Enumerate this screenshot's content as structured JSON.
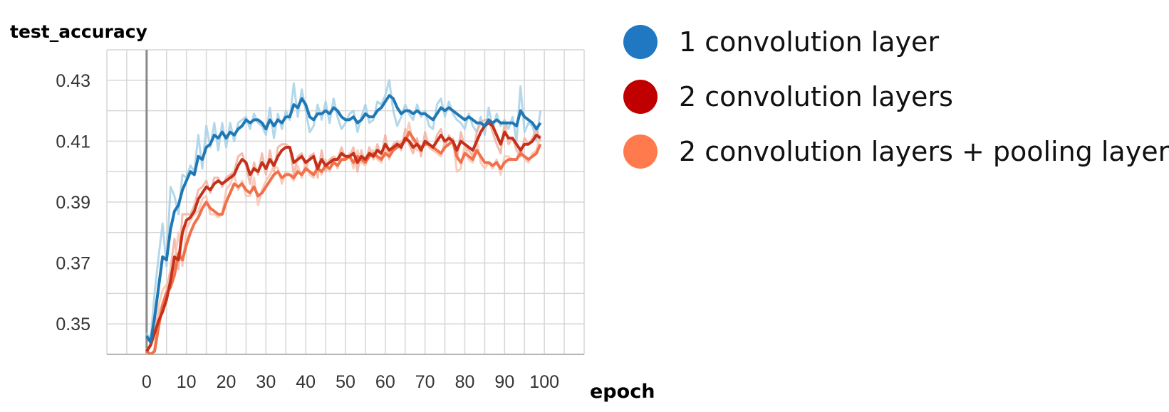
{
  "chart_data": {
    "type": "line",
    "ylabel": "test_accuracy",
    "xlabel": "epoch",
    "xlim": [
      -10,
      110
    ],
    "ylim": [
      0.34,
      0.44
    ],
    "xticks": [
      0,
      10,
      20,
      30,
      40,
      50,
      60,
      70,
      80,
      90,
      100
    ],
    "yticks": [
      0.35,
      0.37,
      0.39,
      0.41,
      0.43
    ],
    "xtick_labels": [
      "0",
      "10",
      "20",
      "30",
      "40",
      "50",
      "60",
      "70",
      "80",
      "90",
      "100"
    ],
    "ytick_labels": [
      "0.35",
      "0.37",
      "0.39",
      "0.41",
      "0.43"
    ],
    "grid": true,
    "legend_position": "right",
    "series": [
      {
        "name": "1 convolution layer",
        "color": "#1f78b4",
        "light_color": "#a6d0e8",
        "x": [
          0,
          1,
          2,
          3,
          4,
          5,
          6,
          7,
          8,
          9,
          10,
          11,
          12,
          13,
          14,
          15,
          16,
          17,
          18,
          19,
          20,
          21,
          22,
          23,
          24,
          25,
          26,
          27,
          28,
          29,
          30,
          31,
          32,
          33,
          34,
          35,
          36,
          37,
          38,
          39,
          40,
          41,
          42,
          43,
          44,
          45,
          46,
          47,
          48,
          49,
          50,
          51,
          52,
          53,
          54,
          55,
          56,
          57,
          58,
          59,
          60,
          61,
          62,
          63,
          64,
          65,
          66,
          67,
          68,
          69,
          70,
          71,
          72,
          73,
          74,
          75,
          76,
          77,
          78,
          79,
          80,
          81,
          82,
          83,
          84,
          85,
          86,
          87,
          88,
          89,
          90,
          91,
          92,
          93,
          94,
          95,
          96,
          97,
          98,
          99
        ],
        "smoothed": [
          0.346,
          0.344,
          0.352,
          0.362,
          0.372,
          0.371,
          0.381,
          0.387,
          0.389,
          0.394,
          0.397,
          0.4,
          0.399,
          0.405,
          0.404,
          0.408,
          0.409,
          0.412,
          0.411,
          0.413,
          0.411,
          0.413,
          0.412,
          0.414,
          0.415,
          0.417,
          0.416,
          0.417,
          0.417,
          0.416,
          0.414,
          0.417,
          0.415,
          0.417,
          0.416,
          0.418,
          0.418,
          0.422,
          0.421,
          0.424,
          0.422,
          0.418,
          0.417,
          0.419,
          0.419,
          0.42,
          0.419,
          0.421,
          0.42,
          0.418,
          0.417,
          0.417,
          0.418,
          0.416,
          0.417,
          0.419,
          0.418,
          0.418,
          0.42,
          0.421,
          0.423,
          0.425,
          0.424,
          0.421,
          0.419,
          0.42,
          0.42,
          0.419,
          0.42,
          0.419,
          0.419,
          0.418,
          0.417,
          0.419,
          0.421,
          0.42,
          0.421,
          0.42,
          0.419,
          0.418,
          0.417,
          0.418,
          0.417,
          0.416,
          0.416,
          0.415,
          0.417,
          0.416,
          0.417,
          0.416,
          0.416,
          0.416,
          0.416,
          0.415,
          0.42,
          0.418,
          0.417,
          0.416,
          0.414,
          0.416
        ],
        "raw": [
          0.347,
          0.345,
          0.36,
          0.372,
          0.383,
          0.369,
          0.395,
          0.392,
          0.386,
          0.399,
          0.398,
          0.402,
          0.4,
          0.412,
          0.401,
          0.415,
          0.408,
          0.416,
          0.407,
          0.416,
          0.408,
          0.416,
          0.41,
          0.416,
          0.417,
          0.418,
          0.414,
          0.419,
          0.416,
          0.415,
          0.412,
          0.421,
          0.411,
          0.419,
          0.414,
          0.42,
          0.417,
          0.429,
          0.418,
          0.427,
          0.42,
          0.413,
          0.415,
          0.422,
          0.417,
          0.423,
          0.416,
          0.424,
          0.418,
          0.414,
          0.416,
          0.419,
          0.42,
          0.413,
          0.418,
          0.422,
          0.416,
          0.417,
          0.423,
          0.422,
          0.425,
          0.43,
          0.42,
          0.415,
          0.418,
          0.422,
          0.419,
          0.417,
          0.422,
          0.418,
          0.42,
          0.415,
          0.414,
          0.422,
          0.424,
          0.418,
          0.423,
          0.419,
          0.417,
          0.416,
          0.414,
          0.419,
          0.415,
          0.413,
          0.418,
          0.412,
          0.421,
          0.414,
          0.419,
          0.415,
          0.417,
          0.414,
          0.418,
          0.41,
          0.428,
          0.413,
          0.416,
          0.415,
          0.41,
          0.42
        ]
      },
      {
        "name": "2 convolution layers",
        "color": "#c5301a",
        "light_color": "#f1b0a0",
        "x": [
          0,
          1,
          2,
          3,
          4,
          5,
          6,
          7,
          8,
          9,
          10,
          11,
          12,
          13,
          14,
          15,
          16,
          17,
          18,
          19,
          20,
          21,
          22,
          23,
          24,
          25,
          26,
          27,
          28,
          29,
          30,
          31,
          32,
          33,
          34,
          35,
          36,
          37,
          38,
          39,
          40,
          41,
          42,
          43,
          44,
          45,
          46,
          47,
          48,
          49,
          50,
          51,
          52,
          53,
          54,
          55,
          56,
          57,
          58,
          59,
          60,
          61,
          62,
          63,
          64,
          65,
          66,
          67,
          68,
          69,
          70,
          71,
          72,
          73,
          74,
          75,
          76,
          77,
          78,
          79,
          80,
          81,
          82,
          83,
          84,
          85,
          86,
          87,
          88,
          89,
          90,
          91,
          92,
          93,
          94,
          95,
          96,
          97,
          98,
          99
        ],
        "smoothed": [
          0.341,
          0.343,
          0.347,
          0.351,
          0.354,
          0.358,
          0.364,
          0.372,
          0.371,
          0.38,
          0.384,
          0.385,
          0.387,
          0.391,
          0.393,
          0.395,
          0.394,
          0.396,
          0.397,
          0.396,
          0.397,
          0.398,
          0.399,
          0.402,
          0.404,
          0.403,
          0.399,
          0.401,
          0.4,
          0.403,
          0.401,
          0.404,
          0.402,
          0.405,
          0.407,
          0.408,
          0.408,
          0.403,
          0.404,
          0.405,
          0.403,
          0.404,
          0.405,
          0.401,
          0.404,
          0.402,
          0.403,
          0.404,
          0.404,
          0.406,
          0.405,
          0.405,
          0.406,
          0.403,
          0.405,
          0.404,
          0.406,
          0.405,
          0.407,
          0.406,
          0.409,
          0.407,
          0.408,
          0.409,
          0.408,
          0.411,
          0.41,
          0.408,
          0.409,
          0.407,
          0.41,
          0.409,
          0.408,
          0.41,
          0.412,
          0.41,
          0.411,
          0.41,
          0.407,
          0.41,
          0.409,
          0.408,
          0.407,
          0.41,
          0.413,
          0.415,
          0.416,
          0.415,
          0.412,
          0.409,
          0.413,
          0.411,
          0.411,
          0.409,
          0.407,
          0.409,
          0.409,
          0.41,
          0.412,
          0.411
        ],
        "raw": [
          0.34,
          0.344,
          0.35,
          0.353,
          0.357,
          0.361,
          0.368,
          0.378,
          0.368,
          0.386,
          0.386,
          0.386,
          0.389,
          0.394,
          0.395,
          0.397,
          0.393,
          0.398,
          0.398,
          0.395,
          0.398,
          0.399,
          0.4,
          0.405,
          0.406,
          0.402,
          0.396,
          0.403,
          0.399,
          0.406,
          0.399,
          0.407,
          0.4,
          0.408,
          0.409,
          0.409,
          0.408,
          0.399,
          0.405,
          0.406,
          0.401,
          0.405,
          0.406,
          0.398,
          0.407,
          0.4,
          0.404,
          0.405,
          0.404,
          0.408,
          0.404,
          0.405,
          0.408,
          0.4,
          0.407,
          0.403,
          0.408,
          0.404,
          0.409,
          0.405,
          0.412,
          0.405,
          0.409,
          0.41,
          0.407,
          0.414,
          0.409,
          0.406,
          0.411,
          0.405,
          0.413,
          0.408,
          0.407,
          0.412,
          0.414,
          0.408,
          0.412,
          0.409,
          0.404,
          0.413,
          0.408,
          0.407,
          0.405,
          0.413,
          0.416,
          0.417,
          0.417,
          0.413,
          0.409,
          0.406,
          0.416,
          0.409,
          0.411,
          0.407,
          0.405,
          0.411,
          0.409,
          0.411,
          0.414,
          0.41
        ]
      },
      {
        "name": "2 convolution layers + pooling layer",
        "color": "#f0714a",
        "light_color": "#f9c4b0",
        "x": [
          0,
          1,
          2,
          3,
          4,
          5,
          6,
          7,
          8,
          9,
          10,
          11,
          12,
          13,
          14,
          15,
          16,
          17,
          18,
          19,
          20,
          21,
          22,
          23,
          24,
          25,
          26,
          27,
          28,
          29,
          30,
          31,
          32,
          33,
          34,
          35,
          36,
          37,
          38,
          39,
          40,
          41,
          42,
          43,
          44,
          45,
          46,
          47,
          48,
          49,
          50,
          51,
          52,
          53,
          54,
          55,
          56,
          57,
          58,
          59,
          60,
          61,
          62,
          63,
          64,
          65,
          66,
          67,
          68,
          69,
          70,
          71,
          72,
          73,
          74,
          75,
          76,
          77,
          78,
          79,
          80,
          81,
          82,
          83,
          84,
          85,
          86,
          87,
          88,
          89,
          90,
          91,
          92,
          93,
          94,
          95,
          96,
          97,
          98,
          99
        ],
        "smoothed": [
          0.341,
          0.34,
          0.341,
          0.349,
          0.356,
          0.36,
          0.362,
          0.366,
          0.373,
          0.371,
          0.376,
          0.38,
          0.383,
          0.385,
          0.388,
          0.39,
          0.388,
          0.387,
          0.386,
          0.386,
          0.39,
          0.393,
          0.396,
          0.395,
          0.396,
          0.394,
          0.393,
          0.395,
          0.392,
          0.393,
          0.395,
          0.397,
          0.399,
          0.4,
          0.398,
          0.399,
          0.399,
          0.398,
          0.4,
          0.399,
          0.401,
          0.4,
          0.399,
          0.401,
          0.4,
          0.402,
          0.401,
          0.403,
          0.402,
          0.404,
          0.404,
          0.405,
          0.403,
          0.405,
          0.404,
          0.403,
          0.405,
          0.406,
          0.405,
          0.404,
          0.406,
          0.405,
          0.407,
          0.408,
          0.409,
          0.41,
          0.413,
          0.411,
          0.409,
          0.408,
          0.409,
          0.409,
          0.408,
          0.407,
          0.406,
          0.408,
          0.409,
          0.41,
          0.405,
          0.403,
          0.406,
          0.405,
          0.404,
          0.407,
          0.405,
          0.403,
          0.403,
          0.402,
          0.403,
          0.401,
          0.403,
          0.404,
          0.404,
          0.404,
          0.406,
          0.405,
          0.404,
          0.405,
          0.406,
          0.409
        ],
        "raw": [
          0.342,
          0.338,
          0.342,
          0.356,
          0.361,
          0.363,
          0.363,
          0.37,
          0.38,
          0.369,
          0.381,
          0.384,
          0.386,
          0.387,
          0.391,
          0.392,
          0.386,
          0.386,
          0.385,
          0.386,
          0.394,
          0.396,
          0.399,
          0.394,
          0.397,
          0.392,
          0.392,
          0.398,
          0.389,
          0.394,
          0.397,
          0.399,
          0.402,
          0.401,
          0.396,
          0.4,
          0.399,
          0.397,
          0.402,
          0.398,
          0.403,
          0.399,
          0.398,
          0.403,
          0.399,
          0.404,
          0.4,
          0.405,
          0.401,
          0.406,
          0.404,
          0.406,
          0.401,
          0.407,
          0.403,
          0.402,
          0.407,
          0.407,
          0.404,
          0.403,
          0.408,
          0.404,
          0.409,
          0.409,
          0.41,
          0.411,
          0.416,
          0.409,
          0.407,
          0.407,
          0.41,
          0.409,
          0.407,
          0.406,
          0.405,
          0.41,
          0.41,
          0.411,
          0.4,
          0.401,
          0.409,
          0.404,
          0.403,
          0.41,
          0.403,
          0.401,
          0.403,
          0.401,
          0.404,
          0.399,
          0.405,
          0.405,
          0.404,
          0.404,
          0.408,
          0.404,
          0.403,
          0.406,
          0.407,
          0.412
        ]
      }
    ]
  }
}
